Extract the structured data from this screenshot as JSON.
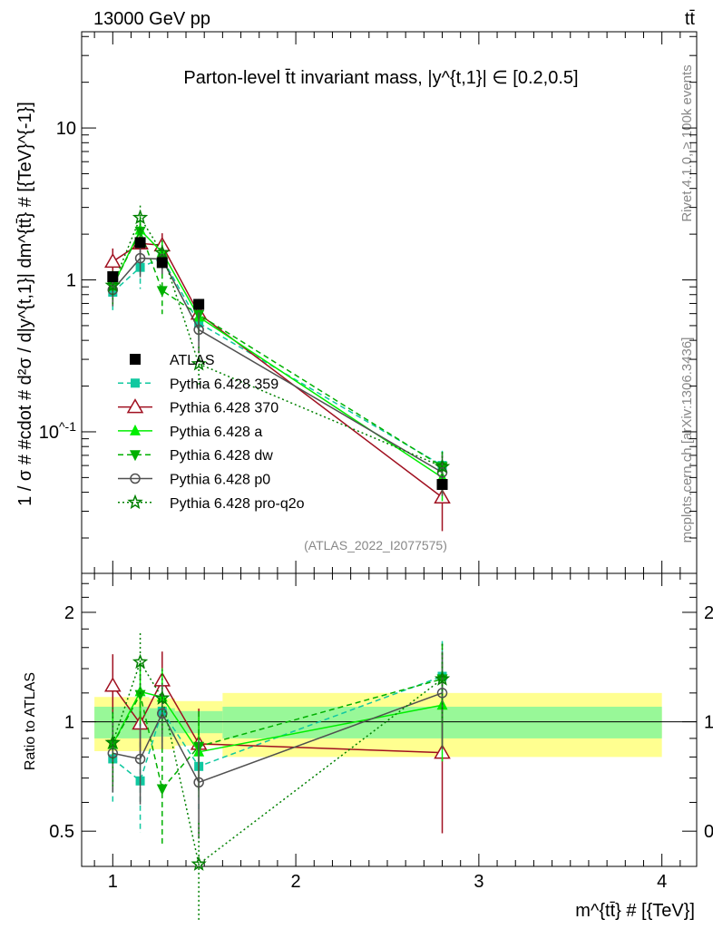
{
  "header": {
    "left": "13000 GeV pp",
    "right": "tt̄"
  },
  "side_labels": {
    "rivet": "Rivet 4.1.0, ≥ 100k events",
    "mcplots": "mcplots.cern.ch [arXiv:1306.3436]"
  },
  "chart_data": {
    "type": "line",
    "title": "Parton-level t̄t invariant mass, |y^{t,1}| ∈ [0.2,0.5]",
    "analysis_label": "(ATLAS_2022_I2077575)",
    "xlabel": "m^{tt̄} # [{TeV}]",
    "ylabel": "1 / σ # #cdot # d²σ / d|y^{t,1}| dm^{tt̄} # [{TeV}^{-1}]",
    "ratio_ylabel": "Ratio to ATLAS",
    "xlim": [
      0.83,
      4.19
    ],
    "ylim": [
      0.0117,
      43
    ],
    "yscale": "log",
    "ratio_ylim": [
      0.4,
      2.56
    ],
    "xticks": [
      "1",
      "2",
      "3",
      "4"
    ],
    "yticks": [
      {
        "v": 10,
        "label": "10"
      },
      {
        "v": 1,
        "label": "1"
      },
      {
        "v": 0.1,
        "label": "10^-1"
      }
    ],
    "ratio_yticks": [
      {
        "v": 2,
        "label": "2"
      },
      {
        "v": 1,
        "label": "1"
      },
      {
        "v": 0.5,
        "label": "0.5"
      }
    ],
    "x": [
      1.0,
      1.15,
      1.27,
      1.47,
      2.8
    ],
    "bins": [
      0.9,
      1.1,
      1.2,
      1.34,
      1.6,
      4.0
    ],
    "band_inner": [
      0.1,
      0.1,
      0.09,
      0.07,
      0.1
    ],
    "band_outer": [
      0.17,
      0.17,
      0.16,
      0.14,
      0.2
    ],
    "data": {
      "name": "ATLAS",
      "values": [
        1.05,
        1.76,
        1.3,
        0.69,
        0.045
      ],
      "rel_err": [
        0.05,
        0.04,
        0.04,
        0.05,
        0.06
      ],
      "color": "#000000"
    },
    "series": [
      {
        "name": "Pythia 6.428 359",
        "values": [
          0.83,
          1.21,
          1.39,
          0.52,
          0.06
        ],
        "rel_err": [
          0.25,
          0.28,
          0.2,
          0.25,
          0.25
        ],
        "color": "#10c8a0",
        "dash": "6,4",
        "marker": "square"
      },
      {
        "name": "Pythia 6.428 370",
        "values": [
          1.32,
          1.74,
          1.69,
          0.6,
          0.037
        ],
        "rel_err": [
          0.22,
          0.18,
          0.2,
          0.25,
          0.4
        ],
        "color": "#a01020",
        "dash": "",
        "marker": "triangle-open"
      },
      {
        "name": "Pythia 6.428 a",
        "values": [
          0.91,
          2.13,
          1.52,
          0.57,
          0.05
        ],
        "rel_err": [
          0.22,
          0.2,
          0.2,
          0.25,
          0.3
        ],
        "color": "#00ee00",
        "dash": "",
        "marker": "triangle"
      },
      {
        "name": "Pythia 6.428 dw",
        "values": [
          0.91,
          2.09,
          0.85,
          0.59,
          0.059
        ],
        "rel_err": [
          0.22,
          0.2,
          0.3,
          0.25,
          0.25
        ],
        "color": "#00b000",
        "dash": "6,4",
        "marker": "triangle-down"
      },
      {
        "name": "Pythia 6.428 p0",
        "values": [
          0.86,
          1.39,
          1.37,
          0.47,
          0.054
        ],
        "rel_err": [
          0.22,
          0.25,
          0.2,
          0.3,
          0.3
        ],
        "color": "#505050",
        "dash": "",
        "marker": "circle-open"
      },
      {
        "name": "Pythia 6.428 pro-q2o",
        "values": [
          0.92,
          2.57,
          1.51,
          0.28,
          0.059
        ],
        "rel_err": [
          0.25,
          0.2,
          0.2,
          0.3,
          0.25
        ],
        "color": "#008000",
        "dash": "2,3",
        "marker": "star"
      }
    ]
  }
}
